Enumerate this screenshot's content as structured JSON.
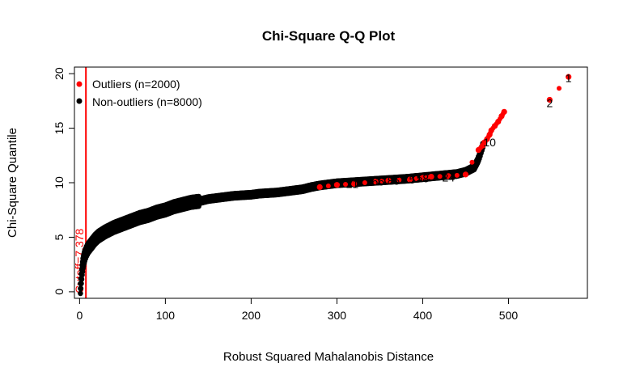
{
  "chart_data": {
    "type": "scatter",
    "title": "Chi-Square Q-Q Plot",
    "xlabel": "Robust Squared Mahalanobis Distance",
    "ylabel": "Chi-Square Quantile",
    "xlim": [
      -6,
      592
    ],
    "ylim": [
      -0.6,
      20.6
    ],
    "x_ticks": [
      0,
      100,
      200,
      300,
      400,
      500
    ],
    "y_ticks": [
      0,
      5,
      10,
      15,
      20
    ],
    "grid": false,
    "legend_position": "top-left",
    "legend": [
      {
        "label": "Outliers (n=2000)",
        "color": "#ff0000"
      },
      {
        "label": "Non-outliers (n=8000)",
        "color": "#000000"
      }
    ],
    "cutoff": {
      "x": 7.378,
      "label": "Cutoff=7.378",
      "color": "#ff0000"
    },
    "colors": {
      "outlier": "#ff0000",
      "nonoutlier": "#000000",
      "cutoff": "#ff0000"
    },
    "series": [
      {
        "name": "Non-outliers (n=8000)",
        "x": [
          1,
          2,
          3,
          4,
          5,
          6,
          8,
          10,
          12,
          15,
          18,
          22,
          26,
          30,
          35,
          40,
          50,
          60,
          70,
          80,
          90,
          100,
          110,
          120,
          130,
          140,
          150,
          160,
          170,
          180,
          190,
          200,
          210,
          220,
          230,
          240,
          250,
          260,
          270,
          280,
          290,
          300,
          320,
          340,
          360,
          380,
          400,
          420,
          440,
          450,
          455,
          460,
          462,
          464,
          466,
          468,
          470
        ],
        "y": [
          0.3,
          1.2,
          2.0,
          2.6,
          3.0,
          3.3,
          3.7,
          4.0,
          4.2,
          4.5,
          4.8,
          5.1,
          5.3,
          5.5,
          5.7,
          5.9,
          6.2,
          6.5,
          6.8,
          7.0,
          7.3,
          7.5,
          7.8,
          8.0,
          8.2,
          8.3,
          8.5,
          8.6,
          8.7,
          8.8,
          8.85,
          8.9,
          9.0,
          9.05,
          9.1,
          9.2,
          9.3,
          9.4,
          9.6,
          9.75,
          9.85,
          9.95,
          10.05,
          10.15,
          10.25,
          10.35,
          10.5,
          10.65,
          10.8,
          11.0,
          11.2,
          11.4,
          11.7,
          12.0,
          12.4,
          12.9,
          13.4
        ]
      },
      {
        "name": "Outliers (n=2000)",
        "x": [
          280,
          300,
          320,
          345,
          360,
          385,
          400,
          410,
          430,
          450,
          465,
          470,
          472,
          475,
          478,
          480,
          484,
          488,
          492,
          495,
          548,
          570
        ],
        "y": [
          9.6,
          9.8,
          9.9,
          10.1,
          10.2,
          10.3,
          10.45,
          10.55,
          10.6,
          10.75,
          13.0,
          13.4,
          13.7,
          14.0,
          14.4,
          14.8,
          15.2,
          15.6,
          16.1,
          16.5,
          17.6,
          19.7
        ]
      }
    ],
    "annotations": [
      {
        "text": "21",
        "x": 318,
        "y": 9.9,
        "color": "#000000"
      },
      {
        "text": "66",
        "x": 348,
        "y": 10.1,
        "color": "#000000"
      },
      {
        "text": "85",
        "x": 366,
        "y": 10.2,
        "color": "#000000"
      },
      {
        "text": "75",
        "x": 384,
        "y": 10.3,
        "color": "#000000"
      },
      {
        "text": "58",
        "x": 400,
        "y": 10.4,
        "color": "#000000"
      },
      {
        "text": "24",
        "x": 430,
        "y": 10.5,
        "color": "#000000"
      },
      {
        "text": "10",
        "x": 478,
        "y": 13.7,
        "color": "#000000"
      },
      {
        "text": "2",
        "x": 548,
        "y": 17.3,
        "color": "#000000"
      },
      {
        "text": "1",
        "x": 570,
        "y": 19.6,
        "color": "#000000"
      }
    ]
  }
}
